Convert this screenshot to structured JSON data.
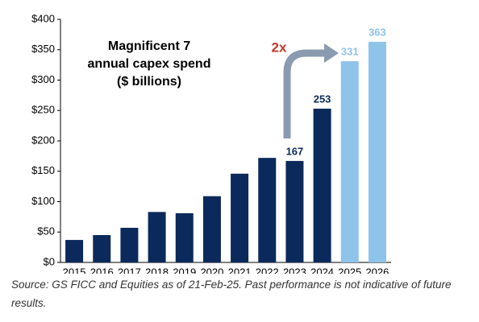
{
  "chart_data": {
    "type": "bar",
    "title": [
      "Magnificent 7",
      "annual capex spend",
      "($ billions)"
    ],
    "categories": [
      "2015",
      "2016",
      "2017",
      "2018",
      "2019",
      "2020",
      "2021",
      "2022",
      "2023",
      "2024",
      "2025",
      "2026"
    ],
    "values": [
      37,
      45,
      57,
      83,
      81,
      109,
      146,
      172,
      167,
      253,
      331,
      363
    ],
    "value_labels": [
      null,
      null,
      null,
      null,
      null,
      null,
      null,
      null,
      "167",
      "253",
      "331",
      "363"
    ],
    "colors": [
      "#0b2a5b",
      "#0b2a5b",
      "#0b2a5b",
      "#0b2a5b",
      "#0b2a5b",
      "#0b2a5b",
      "#0b2a5b",
      "#0b2a5b",
      "#0b2a5b",
      "#0b2a5b",
      "#8ec3ea",
      "#8ec3ea"
    ],
    "ylim": [
      0,
      400
    ],
    "yticks": [
      {
        "value": 0,
        "label": "$0"
      },
      {
        "value": 50,
        "label": "$50"
      },
      {
        "value": 100,
        "label": "$100"
      },
      {
        "value": 150,
        "label": "$150"
      },
      {
        "value": 200,
        "label": "$200"
      },
      {
        "value": 250,
        "label": "$250"
      },
      {
        "value": 300,
        "label": "$300"
      },
      {
        "value": 350,
        "label": "$350"
      },
      {
        "value": 400,
        "label": "$400"
      }
    ],
    "annotation": "2x",
    "source": "Source: GS FICC and Equities as of 21-Feb-25. Past performance is not indicative of future results."
  }
}
